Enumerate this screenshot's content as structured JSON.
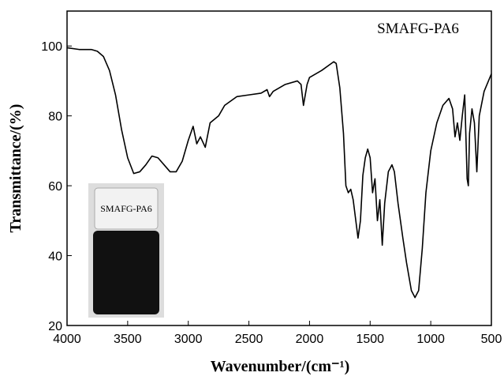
{
  "chart_data": {
    "type": "line",
    "x_label": "Wavenumber/(cm⁻¹)",
    "y_label": "Transmittance/(%)",
    "annotation": "SMAFG-PA6",
    "inset_label": "SMAFG-PA6",
    "xlim": [
      4000,
      500
    ],
    "ylim": [
      20,
      110
    ],
    "xticks": [
      4000,
      3500,
      3000,
      2500,
      2000,
      1500,
      1000,
      500
    ],
    "yticks": [
      20,
      40,
      60,
      80,
      100
    ],
    "series": [
      {
        "name": "SMAFG-PA6",
        "color": "#000000",
        "x": [
          4000,
          3900,
          3800,
          3750,
          3700,
          3650,
          3600,
          3550,
          3500,
          3450,
          3400,
          3350,
          3300,
          3250,
          3200,
          3150,
          3100,
          3050,
          3000,
          2960,
          2930,
          2900,
          2860,
          2820,
          2750,
          2700,
          2600,
          2500,
          2400,
          2350,
          2330,
          2300,
          2200,
          2100,
          2070,
          2050,
          2020,
          2000,
          1900,
          1800,
          1780,
          1750,
          1720,
          1700,
          1680,
          1660,
          1640,
          1600,
          1580,
          1560,
          1540,
          1520,
          1500,
          1480,
          1460,
          1440,
          1420,
          1400,
          1380,
          1350,
          1320,
          1300,
          1270,
          1230,
          1200,
          1160,
          1130,
          1100,
          1070,
          1040,
          1000,
          950,
          900,
          850,
          820,
          800,
          780,
          760,
          740,
          720,
          700,
          690,
          680,
          660,
          640,
          620,
          600,
          560,
          500
        ],
        "values": [
          99.5,
          99,
          99,
          98.5,
          97,
          93,
          86,
          76,
          68,
          63.5,
          64,
          66,
          68.5,
          68,
          66,
          64,
          64,
          67,
          73,
          77,
          72,
          74,
          71,
          78,
          80,
          83,
          85.5,
          86,
          86.5,
          87.5,
          85.5,
          87,
          89,
          90,
          89,
          83,
          89,
          91,
          93,
          95.5,
          95,
          88,
          75,
          60,
          58,
          59,
          56,
          45,
          50,
          63,
          68,
          70.5,
          68,
          58,
          62,
          50,
          56,
          43,
          55,
          64,
          66,
          64,
          55,
          45,
          38,
          30,
          28,
          30,
          42,
          58,
          70,
          78,
          83,
          85,
          82,
          74,
          78,
          73,
          80,
          86,
          62,
          60,
          75,
          82,
          78,
          64,
          80,
          87,
          92
        ]
      }
    ]
  }
}
